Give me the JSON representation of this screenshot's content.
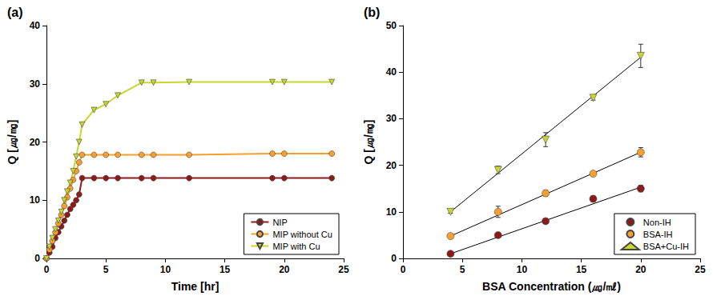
{
  "chart_data": [
    {
      "type": "line",
      "title": "(a)",
      "x_label": "Time [hr]",
      "y_label": "Q [㎍/㎎]",
      "x": [
        0,
        0.25,
        0.5,
        0.75,
        1,
        1.25,
        1.5,
        1.75,
        2,
        2.25,
        2.5,
        2.75,
        3,
        4,
        5,
        6,
        8,
        9,
        12,
        19,
        20,
        24
      ],
      "series": [
        {
          "name": "NIP",
          "color": "#8b1a1a",
          "marker": "circle",
          "values": [
            0,
            1,
            2,
            3.5,
            4.5,
            5.5,
            6.5,
            7.5,
            8.5,
            9.2,
            10,
            11,
            13.8,
            13.8,
            13.8,
            13.8,
            13.8,
            13.8,
            13.8,
            13.8,
            13.8,
            13.8
          ]
        },
        {
          "name": "MIP without Cu",
          "color": "#f5a030",
          "marker": "circle",
          "values": [
            0,
            1.5,
            3,
            4.5,
            6,
            7.5,
            9,
            10.5,
            12,
            13.5,
            15,
            16.5,
            17.8,
            17.8,
            17.8,
            17.8,
            17.8,
            17.8,
            17.8,
            18,
            18,
            18
          ]
        },
        {
          "name": "MIP with Cu",
          "color": "#c8d630",
          "marker": "triangle-down",
          "values": [
            0,
            2,
            3.5,
            5,
            6.5,
            8,
            10,
            11.5,
            13,
            15,
            17.5,
            20,
            23,
            25.5,
            26.5,
            28,
            30.2,
            30.2,
            30.3,
            30.3,
            30.3,
            30.3
          ]
        }
      ],
      "xlim": [
        0,
        25
      ],
      "xticks": [
        0,
        5,
        10,
        15,
        20,
        25
      ],
      "ylim": [
        0,
        40
      ],
      "yticks": [
        0,
        10,
        20,
        30,
        40
      ],
      "grid": false,
      "legend": "lower right"
    },
    {
      "type": "scatter",
      "title": "(b)",
      "x_label": "BSA Concentration (㎍/㎖)",
      "y_label": "Q [㎍/㎎]",
      "x": [
        4,
        8,
        12,
        16,
        20
      ],
      "fit_x": [
        4,
        20
      ],
      "series": [
        {
          "name": "Non-IH",
          "color": "#8b1a1a",
          "marker": "circle",
          "values": [
            1,
            5,
            8,
            12.8,
            15
          ],
          "errors": [
            0.3,
            0.4,
            0.5,
            0.6,
            0.7
          ],
          "fit": [
            1,
            15.3
          ]
        },
        {
          "name": "BSA-IH",
          "color": "#f5a030",
          "marker": "circle",
          "values": [
            4.8,
            10,
            14,
            18.2,
            22.8
          ],
          "errors": [
            0.3,
            1.2,
            0.6,
            0.4,
            1
          ],
          "fit": [
            4.8,
            22.8
          ]
        },
        {
          "name": "BSA+Cu-IH",
          "color": "#c8d630",
          "marker": "triangle-down",
          "values": [
            10,
            19,
            25.5,
            34.5,
            43.5
          ],
          "errors": [
            0.3,
            0.8,
            1.5,
            0.5,
            2.5
          ],
          "fit": [
            10,
            43.2
          ]
        }
      ],
      "xlim": [
        0,
        25
      ],
      "xticks": [
        0,
        5,
        10,
        15,
        20,
        25
      ],
      "ylim": [
        0,
        50
      ],
      "yticks": [
        0,
        10,
        20,
        30,
        40,
        50
      ],
      "grid": false,
      "legend": "lower right"
    }
  ]
}
